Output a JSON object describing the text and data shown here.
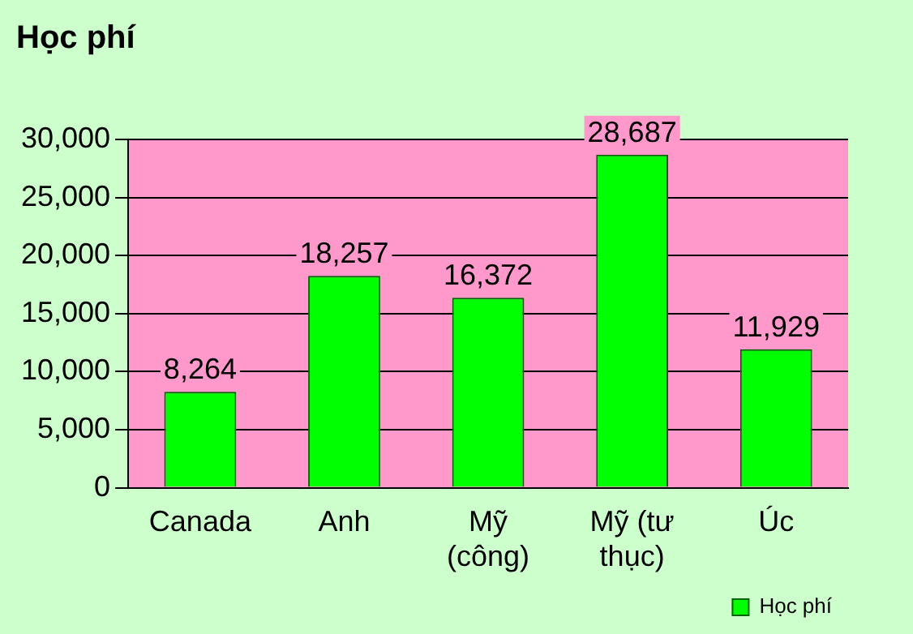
{
  "chart_data": {
    "type": "bar",
    "title": "Học phí",
    "categories": [
      "Canada",
      "Anh",
      "Mỹ (công)",
      "Mỹ (tư thục)",
      "Úc"
    ],
    "series": [
      {
        "name": "Học phí",
        "color": "#00ff00",
        "values": [
          8264,
          18257,
          16372,
          28687,
          11929
        ],
        "value_labels": [
          "8,264",
          "18,257",
          "16,372",
          "28,687",
          "11,929"
        ]
      }
    ],
    "ylim": [
      0,
      30000
    ],
    "yticks": [
      0,
      {
        "value": 5000,
        "label": "5,000"
      },
      {
        "value": 10000,
        "label": "10,000"
      },
      {
        "value": 15000,
        "label": "15,000"
      },
      {
        "value": 20000,
        "label": "20,000"
      },
      {
        "value": 25000,
        "label": "25,000"
      },
      {
        "value": 30000,
        "label": "30,000"
      }
    ],
    "grid": "y",
    "legend": "bottom right"
  }
}
